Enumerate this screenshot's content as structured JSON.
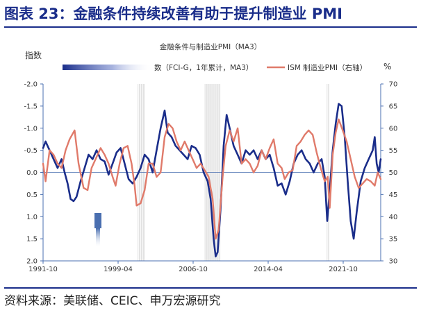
{
  "header": {
    "title": "图表 23：金融条件持续改善有助于提升制造业 PMI"
  },
  "footer": {
    "source": "资料来源：美联储、CEIC、申万宏源研究"
  },
  "chart_data": {
    "type": "line",
    "title": "金融条件与制造业PMI（MA3）",
    "y_left_label": "指数",
    "y_right_label": "%",
    "y_left_inverted": true,
    "y_left_range": [
      -2.0,
      2.0
    ],
    "y_left_ticks": [
      "-2.0",
      "-1.5",
      "-1.0",
      "-0.5",
      "0.0",
      "0.5",
      "1.0",
      "1.5",
      "2.0"
    ],
    "y_right_range": [
      30,
      70
    ],
    "y_right_ticks": [
      "70",
      "65",
      "60",
      "55",
      "50",
      "45",
      "40",
      "35",
      "30"
    ],
    "x_range": [
      1991.75,
      2025.5
    ],
    "x_ticks": [
      {
        "label": "1991-10",
        "x": 1991.75
      },
      {
        "label": "1999-04",
        "x": 1999.25
      },
      {
        "label": "2006-10",
        "x": 2006.75
      },
      {
        "label": "2014-04",
        "x": 2014.25
      },
      {
        "label": "2021-10",
        "x": 2021.75
      }
    ],
    "recessions": [
      [
        2001.2,
        2001.9
      ],
      [
        2007.9,
        2009.5
      ],
      [
        2020.1,
        2020.35
      ]
    ],
    "series": [
      {
        "name": "数（FCI-G，1年累计，MA3）",
        "color": "#1a2d8a",
        "axis": "left",
        "points": [
          [
            1991.75,
            -0.55
          ],
          [
            1992.0,
            -0.7
          ],
          [
            1992.4,
            -0.5
          ],
          [
            1992.8,
            -0.3
          ],
          [
            1993.2,
            -0.1
          ],
          [
            1993.6,
            -0.3
          ],
          [
            1993.9,
            0.0
          ],
          [
            1994.2,
            0.25
          ],
          [
            1994.5,
            0.6
          ],
          [
            1994.8,
            0.65
          ],
          [
            1995.1,
            0.55
          ],
          [
            1995.5,
            0.2
          ],
          [
            1995.9,
            -0.1
          ],
          [
            1996.3,
            -0.4
          ],
          [
            1996.7,
            -0.3
          ],
          [
            1997.1,
            -0.5
          ],
          [
            1997.5,
            -0.3
          ],
          [
            1997.9,
            -0.25
          ],
          [
            1998.3,
            0.05
          ],
          [
            1998.7,
            -0.2
          ],
          [
            1999.1,
            -0.45
          ],
          [
            1999.5,
            -0.55
          ],
          [
            1999.9,
            -0.2
          ],
          [
            2000.3,
            0.15
          ],
          [
            2000.7,
            0.25
          ],
          [
            2001.1,
            0.1
          ],
          [
            2001.5,
            -0.1
          ],
          [
            2001.9,
            -0.4
          ],
          [
            2002.3,
            -0.3
          ],
          [
            2002.7,
            0.0
          ],
          [
            2003.1,
            -0.5
          ],
          [
            2003.5,
            -1.0
          ],
          [
            2003.9,
            -1.4
          ],
          [
            2004.2,
            -0.9
          ],
          [
            2004.6,
            -0.8
          ],
          [
            2005.0,
            -0.6
          ],
          [
            2005.4,
            -0.5
          ],
          [
            2005.8,
            -0.4
          ],
          [
            2006.2,
            -0.3
          ],
          [
            2006.6,
            -0.6
          ],
          [
            2007.0,
            -0.55
          ],
          [
            2007.4,
            -0.4
          ],
          [
            2007.8,
            0.0
          ],
          [
            2008.2,
            0.2
          ],
          [
            2008.5,
            0.6
          ],
          [
            2008.8,
            1.5
          ],
          [
            2009.0,
            1.9
          ],
          [
            2009.2,
            1.8
          ],
          [
            2009.5,
            0.8
          ],
          [
            2009.8,
            -0.6
          ],
          [
            2010.1,
            -1.3
          ],
          [
            2010.4,
            -1.0
          ],
          [
            2010.8,
            -0.6
          ],
          [
            2011.2,
            -0.4
          ],
          [
            2011.6,
            -0.2
          ],
          [
            2012.0,
            -0.5
          ],
          [
            2012.4,
            -0.4
          ],
          [
            2012.8,
            -0.5
          ],
          [
            2013.2,
            -0.3
          ],
          [
            2013.6,
            -0.5
          ],
          [
            2014.0,
            -0.3
          ],
          [
            2014.4,
            -0.4
          ],
          [
            2014.8,
            -0.1
          ],
          [
            2015.2,
            0.3
          ],
          [
            2015.6,
            0.25
          ],
          [
            2016.0,
            0.5
          ],
          [
            2016.4,
            0.2
          ],
          [
            2016.8,
            -0.2
          ],
          [
            2017.2,
            -0.4
          ],
          [
            2017.6,
            -0.5
          ],
          [
            2018.0,
            -0.3
          ],
          [
            2018.4,
            -0.2
          ],
          [
            2018.8,
            0.0
          ],
          [
            2019.2,
            -0.2
          ],
          [
            2019.6,
            -0.3
          ],
          [
            2019.9,
            0.1
          ],
          [
            2020.15,
            1.1
          ],
          [
            2020.4,
            0.4
          ],
          [
            2020.7,
            -0.5
          ],
          [
            2021.0,
            -1.1
          ],
          [
            2021.3,
            -1.55
          ],
          [
            2021.6,
            -1.5
          ],
          [
            2021.9,
            -0.8
          ],
          [
            2022.2,
            0.2
          ],
          [
            2022.5,
            1.1
          ],
          [
            2022.8,
            1.5
          ],
          [
            2023.1,
            0.9
          ],
          [
            2023.5,
            0.2
          ],
          [
            2023.9,
            -0.1
          ],
          [
            2024.3,
            -0.3
          ],
          [
            2024.7,
            -0.5
          ],
          [
            2024.9,
            -0.8
          ],
          [
            2025.1,
            -0.2
          ],
          [
            2025.3,
            0.0
          ],
          [
            2025.5,
            -0.3
          ]
        ]
      },
      {
        "name": "ISM 制造业PMI（右轴）",
        "color": "#e07a6a",
        "axis": "right",
        "points": [
          [
            1991.75,
            52
          ],
          [
            1992.0,
            48
          ],
          [
            1992.4,
            55
          ],
          [
            1992.8,
            54
          ],
          [
            1993.2,
            52
          ],
          [
            1993.6,
            51
          ],
          [
            1994.0,
            55
          ],
          [
            1994.4,
            57.5
          ],
          [
            1994.9,
            59.5
          ],
          [
            1995.3,
            52
          ],
          [
            1995.8,
            46.5
          ],
          [
            1996.2,
            46
          ],
          [
            1996.6,
            51
          ],
          [
            1997.0,
            53
          ],
          [
            1997.5,
            55.5
          ],
          [
            1997.9,
            54
          ],
          [
            1998.3,
            52
          ],
          [
            1998.7,
            49
          ],
          [
            1999.0,
            47
          ],
          [
            1999.4,
            52
          ],
          [
            1999.8,
            55.5
          ],
          [
            2000.2,
            56
          ],
          [
            2000.6,
            52
          ],
          [
            2000.9,
            47
          ],
          [
            2001.1,
            42.5
          ],
          [
            2001.5,
            43
          ],
          [
            2001.9,
            46
          ],
          [
            2002.3,
            52
          ],
          [
            2002.7,
            52
          ],
          [
            2003.1,
            49
          ],
          [
            2003.5,
            50
          ],
          [
            2003.9,
            58
          ],
          [
            2004.3,
            61
          ],
          [
            2004.7,
            60
          ],
          [
            2005.1,
            57
          ],
          [
            2005.5,
            55
          ],
          [
            2005.9,
            57
          ],
          [
            2006.3,
            55
          ],
          [
            2006.7,
            53
          ],
          [
            2007.1,
            51
          ],
          [
            2007.5,
            52
          ],
          [
            2007.9,
            50.5
          ],
          [
            2008.3,
            49
          ],
          [
            2008.7,
            44
          ],
          [
            2009.0,
            35
          ],
          [
            2009.3,
            37
          ],
          [
            2009.7,
            49
          ],
          [
            2010.0,
            56
          ],
          [
            2010.4,
            59.5
          ],
          [
            2010.8,
            57
          ],
          [
            2011.2,
            60
          ],
          [
            2011.6,
            52
          ],
          [
            2012.0,
            53
          ],
          [
            2012.4,
            52
          ],
          [
            2012.8,
            50
          ],
          [
            2013.2,
            51.5
          ],
          [
            2013.6,
            55
          ],
          [
            2014.0,
            53
          ],
          [
            2014.4,
            55.5
          ],
          [
            2014.8,
            57.5
          ],
          [
            2015.2,
            52
          ],
          [
            2015.6,
            51
          ],
          [
            2015.9,
            48.5
          ],
          [
            2016.3,
            50
          ],
          [
            2016.7,
            50.5
          ],
          [
            2017.1,
            56
          ],
          [
            2017.5,
            57
          ],
          [
            2017.9,
            58.5
          ],
          [
            2018.3,
            59.5
          ],
          [
            2018.7,
            58.5
          ],
          [
            2019.1,
            54.5
          ],
          [
            2019.5,
            51
          ],
          [
            2019.9,
            48
          ],
          [
            2020.2,
            49
          ],
          [
            2020.4,
            42
          ],
          [
            2020.7,
            54
          ],
          [
            2021.0,
            59
          ],
          [
            2021.3,
            62
          ],
          [
            2021.7,
            59.5
          ],
          [
            2022.1,
            57
          ],
          [
            2022.5,
            53
          ],
          [
            2022.9,
            49
          ],
          [
            2023.3,
            46.5
          ],
          [
            2023.7,
            47.5
          ],
          [
            2024.1,
            48.5
          ],
          [
            2024.5,
            48
          ],
          [
            2024.9,
            47
          ],
          [
            2025.2,
            50
          ],
          [
            2025.5,
            48.5
          ]
        ]
      }
    ]
  }
}
